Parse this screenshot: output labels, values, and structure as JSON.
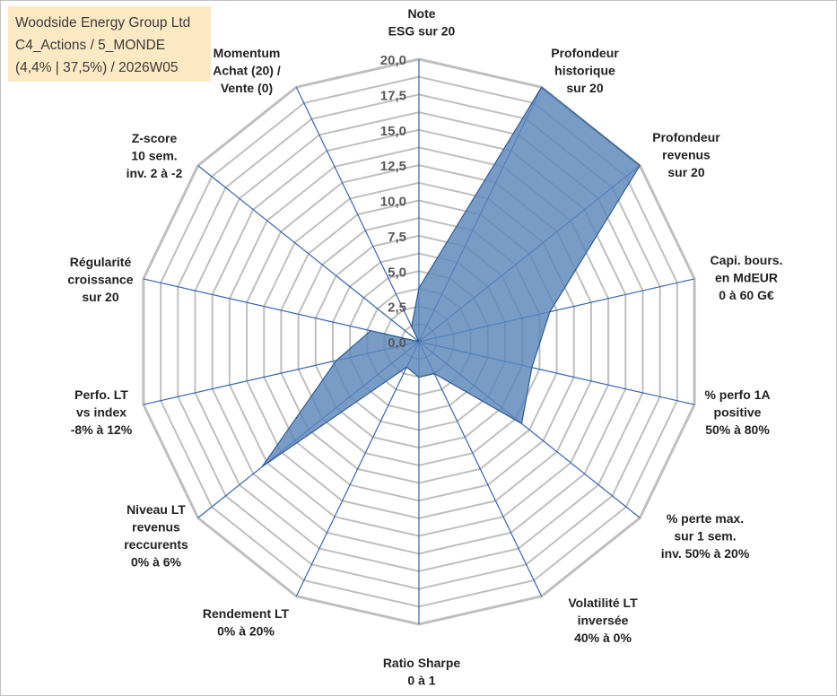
{
  "info": {
    "company": "Woodside Energy Group Ltd",
    "category": "C4_Actions / 5_MONDE",
    "detail": "(4,4% | 37,5%) / 2026W05"
  },
  "colors": {
    "fill": "#5b86bb",
    "stroke": "#2e5c97",
    "spoke": "#3366b4",
    "grid": "#bfbfbf",
    "tick": "#595959"
  },
  "chart_data": {
    "type": "radar",
    "title": "",
    "rmin": 0,
    "rmax": 20,
    "ticks": [
      "0,0",
      "2,5",
      "5,0",
      "7,5",
      "10,0",
      "12,5",
      "15,0",
      "17,5",
      "20,0"
    ],
    "axes": [
      {
        "lines": [
          "Note",
          "ESG sur 20"
        ],
        "value": 3.8
      },
      {
        "lines": [
          "Profondeur",
          "historique",
          "sur 20"
        ],
        "value": 20
      },
      {
        "lines": [
          "Profondeur",
          "revenus",
          "sur 20"
        ],
        "value": 20
      },
      {
        "lines": [
          "Capi. bours.",
          "en MdEUR",
          "0 à 60 G€"
        ],
        "value": 9.5
      },
      {
        "lines": [
          "% perfo 1A",
          "positive",
          "50% à 80%"
        ],
        "value": 8.2
      },
      {
        "lines": [
          "% perte max.",
          "sur 1 sem.",
          "inv. 50% à 20%"
        ],
        "value": 9.3
      },
      {
        "lines": [
          "Volatilité LT",
          "inversée",
          "40% à 0%"
        ],
        "value": 2.5
      },
      {
        "lines": [
          "Ratio Sharpe",
          "0 à 1"
        ],
        "value": 2.5
      },
      {
        "lines": [
          "Rendement LT",
          "0% à 20%"
        ],
        "value": 2.0
      },
      {
        "lines": [
          "Niveau LT",
          "revenus",
          "reccurents",
          "0% à 6%"
        ],
        "value": 14.2
      },
      {
        "lines": [
          "Perfo. LT",
          "vs index",
          "-8% à 12%"
        ],
        "value": 6.0
      },
      {
        "lines": [
          "Régularité",
          "croissance",
          "sur 20"
        ],
        "value": 3.5
      },
      {
        "lines": [
          "Z-score",
          "10 sem.",
          "inv. 2 à -2"
        ],
        "value": 0
      },
      {
        "lines": [
          "Momentum",
          "Achat (20) /",
          "Vente (0)"
        ],
        "value": 1.2
      }
    ]
  }
}
